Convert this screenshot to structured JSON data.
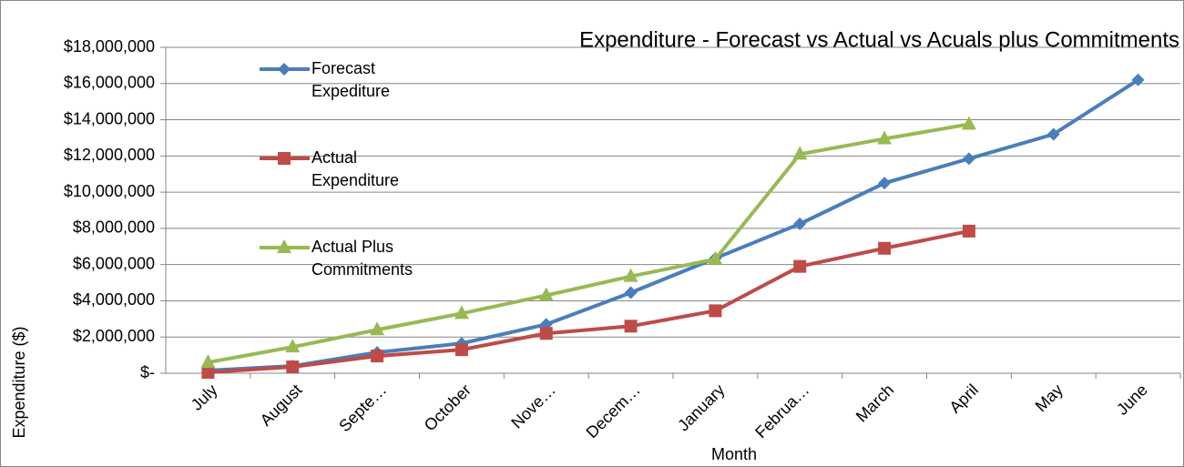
{
  "chart_data": {
    "type": "line",
    "title": "Expenditure - Forecast vs Actual vs Acuals plus Commitments",
    "x_label": "Month",
    "y_label": "Expenditure ($)",
    "categories": [
      "July",
      "August",
      "Septe…",
      "October",
      "Nove…",
      "Decem…",
      "January",
      "Februa…",
      "March",
      "April",
      "May",
      "June"
    ],
    "series": [
      {
        "name": "Forecast Expediture",
        "color": "#4a7ebb",
        "marker": "diamond",
        "values": [
          150000,
          400000,
          1150000,
          1650000,
          2700000,
          4450000,
          6350000,
          8250000,
          10500000,
          11850000,
          13200000,
          16200000
        ]
      },
      {
        "name": "Actual Expenditure",
        "color": "#be4b48",
        "marker": "square",
        "values": [
          50000,
          350000,
          950000,
          1300000,
          2200000,
          2600000,
          3450000,
          5900000,
          6900000,
          7850000,
          null,
          null
        ]
      },
      {
        "name": "Actual Plus Commitments",
        "color": "#98b954",
        "marker": "triangle",
        "values": [
          600000,
          1450000,
          2400000,
          3300000,
          4300000,
          5350000,
          6300000,
          12100000,
          12950000,
          13750000,
          null,
          null
        ]
      }
    ],
    "ylim": [
      0,
      18000000
    ],
    "yticks": [
      {
        "value": 0,
        "label": "$-"
      },
      {
        "value": 2000000,
        "label": "$2,000,000"
      },
      {
        "value": 4000000,
        "label": "$4,000,000"
      },
      {
        "value": 6000000,
        "label": "$6,000,000"
      },
      {
        "value": 8000000,
        "label": "$8,000,000"
      },
      {
        "value": 10000000,
        "label": "$10,000,000"
      },
      {
        "value": 12000000,
        "label": "$12,000,000"
      },
      {
        "value": 14000000,
        "label": "$14,000,000"
      },
      {
        "value": 16000000,
        "label": "$16,000,000"
      },
      {
        "value": 18000000,
        "label": "$18,000,000"
      }
    ],
    "grid": true,
    "legend": "upper left"
  }
}
